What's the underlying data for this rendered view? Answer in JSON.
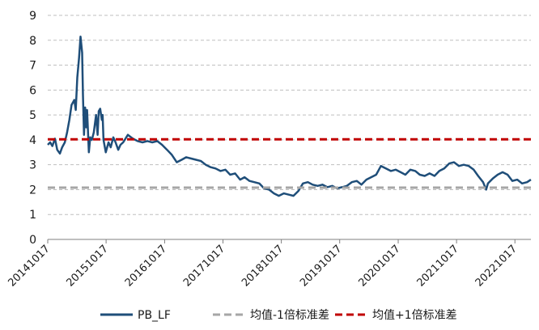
{
  "chart_data": {
    "type": "line",
    "title": "",
    "xlabel": "",
    "ylabel": "",
    "ylim": [
      0,
      9
    ],
    "yticks": [
      0,
      1,
      2,
      3,
      4,
      5,
      6,
      7,
      8,
      9
    ],
    "xlim": [
      "20141017",
      "20230125"
    ],
    "xticks": [
      "20141017",
      "20151017",
      "20161017",
      "20171017",
      "20181017",
      "20191017",
      "20201017",
      "20211017",
      "20221017"
    ],
    "grid": {
      "horizontal": "dashed"
    },
    "legend": {
      "position": "bottom",
      "entries": [
        "PB_LF",
        "均值-1倍标准差",
        "均值+1倍标准差"
      ]
    },
    "series": [
      {
        "name": "PB_LF",
        "color": "#1f4e79",
        "style": "solid",
        "points": [
          [
            "20141017",
            3.8
          ],
          [
            "20141101",
            3.9
          ],
          [
            "20141115",
            3.75
          ],
          [
            "20141201",
            4.05
          ],
          [
            "20141215",
            3.6
          ],
          [
            "20150101",
            3.45
          ],
          [
            "20150115",
            3.7
          ],
          [
            "20150201",
            3.9
          ],
          [
            "20150215",
            4.3
          ],
          [
            "20150301",
            4.8
          ],
          [
            "20150315",
            5.4
          ],
          [
            "20150401",
            5.6
          ],
          [
            "20150410",
            5.2
          ],
          [
            "20150420",
            6.5
          ],
          [
            "20150501",
            7.3
          ],
          [
            "20150510",
            8.15
          ],
          [
            "20150520",
            7.5
          ],
          [
            "20150525",
            5.8
          ],
          [
            "20150601",
            4.2
          ],
          [
            "20150608",
            5.3
          ],
          [
            "20150615",
            4.5
          ],
          [
            "20150620",
            5.2
          ],
          [
            "20150701",
            3.5
          ],
          [
            "20150710",
            4.1
          ],
          [
            "20150720",
            4.0
          ],
          [
            "20150801",
            4.3
          ],
          [
            "20150815",
            5.0
          ],
          [
            "20150825",
            4.2
          ],
          [
            "20150901",
            5.15
          ],
          [
            "20150910",
            5.25
          ],
          [
            "20150920",
            4.8
          ],
          [
            "20150925",
            5.0
          ],
          [
            "20151001",
            4.0
          ],
          [
            "20151015",
            3.5
          ],
          [
            "20151101",
            3.9
          ],
          [
            "20151115",
            3.7
          ],
          [
            "20151201",
            4.1
          ],
          [
            "20151215",
            3.9
          ],
          [
            "20160101",
            3.6
          ],
          [
            "20160115",
            3.8
          ],
          [
            "20160201",
            3.9
          ],
          [
            "20160301",
            4.2
          ],
          [
            "20160401",
            4.05
          ],
          [
            "20160501",
            3.95
          ],
          [
            "20160601",
            3.9
          ],
          [
            "20160701",
            3.95
          ],
          [
            "20160801",
            3.9
          ],
          [
            "20160901",
            3.95
          ],
          [
            "20161001",
            3.8
          ],
          [
            "20161101",
            3.6
          ],
          [
            "20161201",
            3.4
          ],
          [
            "20170101",
            3.1
          ],
          [
            "20170201",
            3.2
          ],
          [
            "20170301",
            3.3
          ],
          [
            "20170401",
            3.25
          ],
          [
            "20170501",
            3.2
          ],
          [
            "20170601",
            3.15
          ],
          [
            "20170701",
            3.0
          ],
          [
            "20170801",
            2.9
          ],
          [
            "20170901",
            2.85
          ],
          [
            "20171001",
            2.75
          ],
          [
            "20171101",
            2.8
          ],
          [
            "20171201",
            2.6
          ],
          [
            "20180101",
            2.65
          ],
          [
            "20180201",
            2.4
          ],
          [
            "20180301",
            2.5
          ],
          [
            "20180401",
            2.35
          ],
          [
            "20180501",
            2.3
          ],
          [
            "20180601",
            2.25
          ],
          [
            "20180701",
            2.05
          ],
          [
            "20180801",
            2.0
          ],
          [
            "20180901",
            1.85
          ],
          [
            "20181001",
            1.75
          ],
          [
            "20181101",
            1.85
          ],
          [
            "20181201",
            1.8
          ],
          [
            "20190101",
            1.75
          ],
          [
            "20190201",
            1.95
          ],
          [
            "20190301",
            2.25
          ],
          [
            "20190401",
            2.3
          ],
          [
            "20190501",
            2.2
          ],
          [
            "20190601",
            2.15
          ],
          [
            "20190701",
            2.2
          ],
          [
            "20190801",
            2.1
          ],
          [
            "20190901",
            2.15
          ],
          [
            "20191001",
            2.05
          ],
          [
            "20191101",
            2.1
          ],
          [
            "20191201",
            2.15
          ],
          [
            "20200101",
            2.3
          ],
          [
            "20200201",
            2.35
          ],
          [
            "20200301",
            2.2
          ],
          [
            "20200401",
            2.4
          ],
          [
            "20200501",
            2.5
          ],
          [
            "20200601",
            2.6
          ],
          [
            "20200701",
            2.95
          ],
          [
            "20200801",
            2.85
          ],
          [
            "20200901",
            2.75
          ],
          [
            "20201001",
            2.8
          ],
          [
            "20201101",
            2.7
          ],
          [
            "20201201",
            2.6
          ],
          [
            "20210101",
            2.8
          ],
          [
            "20210201",
            2.75
          ],
          [
            "20210301",
            2.6
          ],
          [
            "20210401",
            2.55
          ],
          [
            "20210501",
            2.65
          ],
          [
            "20210601",
            2.55
          ],
          [
            "20210701",
            2.75
          ],
          [
            "20210801",
            2.85
          ],
          [
            "20210901",
            3.05
          ],
          [
            "20211001",
            3.1
          ],
          [
            "20211101",
            2.95
          ],
          [
            "20211201",
            3.0
          ],
          [
            "20220101",
            2.95
          ],
          [
            "20220201",
            2.8
          ],
          [
            "20220301",
            2.55
          ],
          [
            "20220401",
            2.3
          ],
          [
            "20220420",
            2.0
          ],
          [
            "20220501",
            2.25
          ],
          [
            "20220601",
            2.45
          ],
          [
            "20220701",
            2.6
          ],
          [
            "20220801",
            2.7
          ],
          [
            "20220901",
            2.6
          ],
          [
            "20221001",
            2.35
          ],
          [
            "20221101",
            2.4
          ],
          [
            "20221201",
            2.25
          ],
          [
            "20230101",
            2.3
          ],
          [
            "20230125",
            2.4
          ]
        ]
      },
      {
        "name": "均值-1倍标准差",
        "color": "#a6a6a6",
        "style": "dashed",
        "value": 2.08
      },
      {
        "name": "均值+1倍标准差",
        "color": "#c00000",
        "style": "dashed",
        "value": 4.02
      }
    ]
  }
}
